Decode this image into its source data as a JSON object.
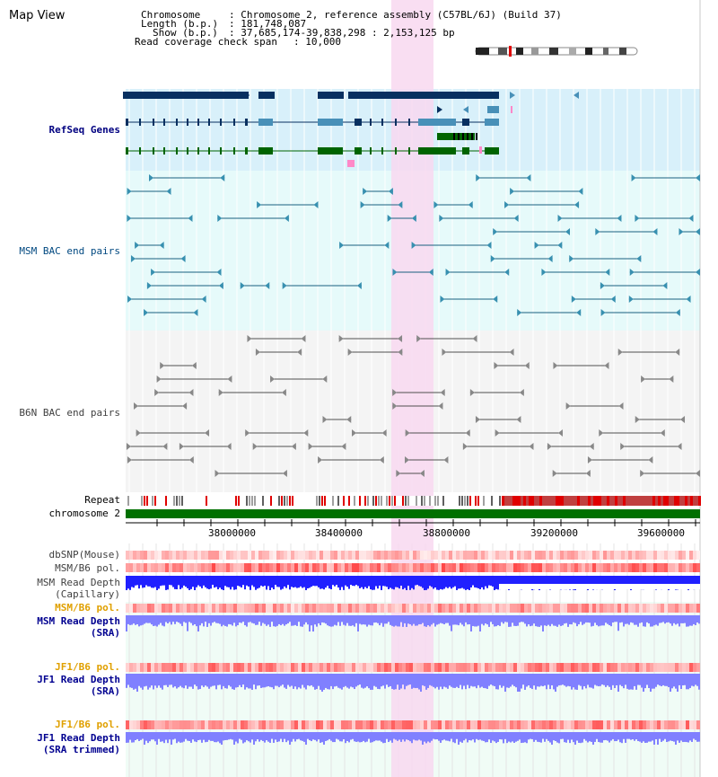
{
  "title": "Map View",
  "header": {
    "chromosome_key": "Chromosome",
    "chromosome_val": ": Chromosome 2, reference assembly (C57BL/6J) (Build 37)",
    "length_key": "Length (b.p.)",
    "length_val": ": 181,748,087",
    "show_key": "Show (b.p.)",
    "show_val": ": 37,685,174-39,838,298 : 2,153,125 bp",
    "coverage_key": "Read coverage check span",
    "coverage_val": ": 10,000"
  },
  "tracks": {
    "refseq": "RefSeq Genes",
    "msm_bac": "MSM BAC end pairs",
    "b6n_bac": "B6N BAC end pairs",
    "repeat": "Repeat",
    "chromosome": "chromosome 2",
    "dbsnp": "dbSNP(Mouse)",
    "msm_b6_pol_1": "MSM/B6 pol.",
    "msm_read_depth_cap_1": "MSM Read Depth",
    "msm_read_depth_cap_2": "(Capillary)",
    "msm_b6_pol_2": "MSM/B6 pol.",
    "msm_read_depth_sra_1": "MSM Read Depth",
    "msm_read_depth_sra_2": "(SRA)",
    "jf1_b6_pol_1": "JF1/B6 pol.",
    "jf1_read_depth_sra_1": "JF1 Read Depth",
    "jf1_read_depth_sra_2": "(SRA)",
    "jf1_b6_pol_2": "JF1/B6 pol.",
    "jf1_read_depth_trim_1": "JF1 Read Depth",
    "jf1_read_depth_trim_2": "(SRA trimmed)"
  },
  "axis_ticks": [
    "38000000",
    "38400000",
    "38800000",
    "39200000",
    "39600000"
  ],
  "colors": {
    "refseq_bg": "#d8f0fa",
    "msm_bg": "#e6fafa",
    "b6n_bg": "#f4f4f4",
    "highlight": "#f8d8f0",
    "gene_navy": "#083060",
    "gene_teal": "#4890b8",
    "gene_green": "#006400",
    "msm_label": "#004880",
    "refseq_label": "#000080",
    "pol_label": "#e0a000",
    "depth_label": "#000090",
    "chromosome": "#007000",
    "depth_blue": "#2020ff",
    "depth_light": "#8080ff"
  }
}
